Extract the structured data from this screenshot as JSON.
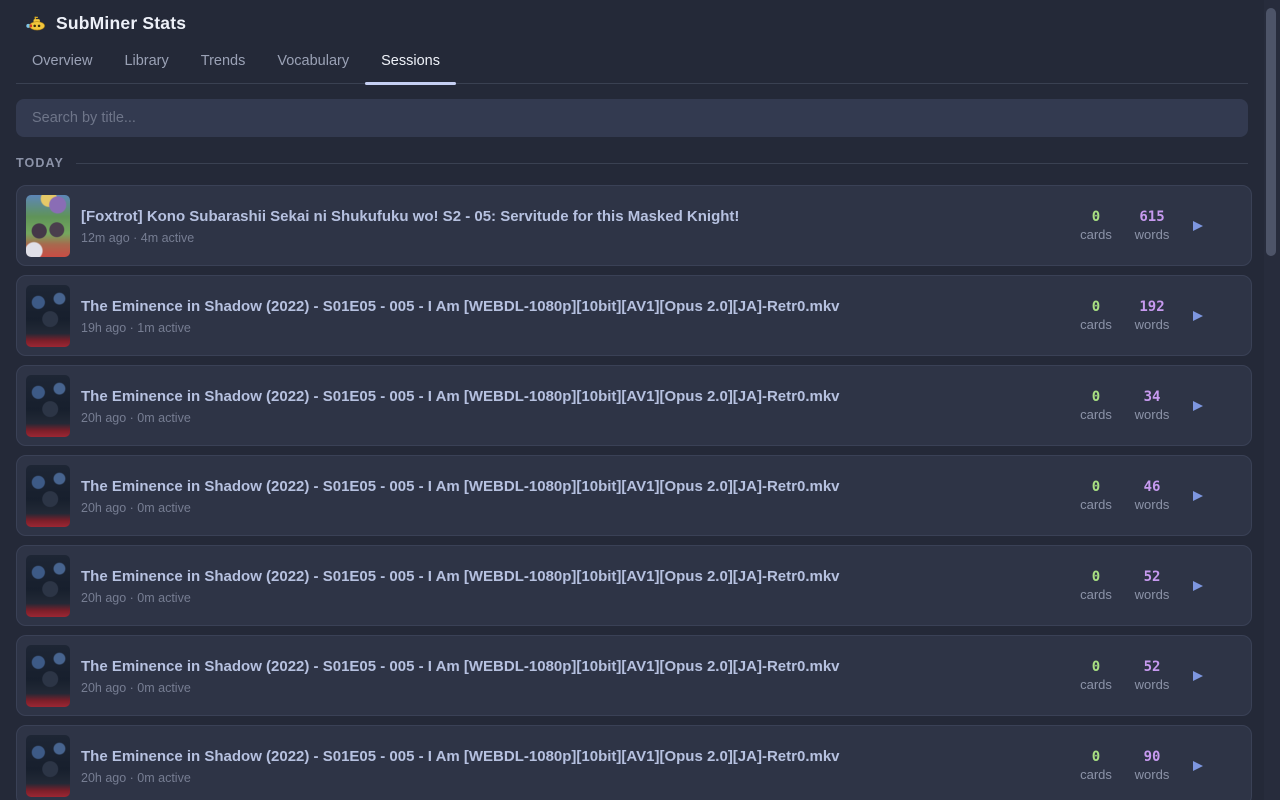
{
  "app": {
    "title": "SubMiner Stats",
    "logo_icon": "yellow-submarine"
  },
  "tabs": [
    {
      "label": "Overview",
      "active": false
    },
    {
      "label": "Library",
      "active": false
    },
    {
      "label": "Trends",
      "active": false
    },
    {
      "label": "Vocabulary",
      "active": false
    },
    {
      "label": "Sessions",
      "active": true
    }
  ],
  "search": {
    "placeholder": "Search by title..."
  },
  "section": {
    "heading": "TODAY"
  },
  "stats_labels": {
    "cards": "cards",
    "words": "words"
  },
  "sessions": [
    {
      "title": "[Foxtrot] Kono Subarashii Sekai ni Shukufuku wo! S2 - 05: Servitude for this Masked Knight!",
      "meta": "12m ago · 4m active",
      "cards": "0",
      "words": "615",
      "poster": "konosuba"
    },
    {
      "title": "The Eminence in Shadow (2022) - S01E05 - 005 - I Am [WEBDL-1080p][10bit][AV1][Opus 2.0][JA]-Retr0.mkv",
      "meta": "19h ago · 1m active",
      "cards": "0",
      "words": "192",
      "poster": "eminence"
    },
    {
      "title": "The Eminence in Shadow (2022) - S01E05 - 005 - I Am [WEBDL-1080p][10bit][AV1][Opus 2.0][JA]-Retr0.mkv",
      "meta": "20h ago · 0m active",
      "cards": "0",
      "words": "34",
      "poster": "eminence"
    },
    {
      "title": "The Eminence in Shadow (2022) - S01E05 - 005 - I Am [WEBDL-1080p][10bit][AV1][Opus 2.0][JA]-Retr0.mkv",
      "meta": "20h ago · 0m active",
      "cards": "0",
      "words": "46",
      "poster": "eminence"
    },
    {
      "title": "The Eminence in Shadow (2022) - S01E05 - 005 - I Am [WEBDL-1080p][10bit][AV1][Opus 2.0][JA]-Retr0.mkv",
      "meta": "20h ago · 0m active",
      "cards": "0",
      "words": "52",
      "poster": "eminence"
    },
    {
      "title": "The Eminence in Shadow (2022) - S01E05 - 005 - I Am [WEBDL-1080p][10bit][AV1][Opus 2.0][JA]-Retr0.mkv",
      "meta": "20h ago · 0m active",
      "cards": "0",
      "words": "52",
      "poster": "eminence"
    },
    {
      "title": "The Eminence in Shadow (2022) - S01E05 - 005 - I Am [WEBDL-1080p][10bit][AV1][Opus 2.0][JA]-Retr0.mkv",
      "meta": "20h ago · 0m active",
      "cards": "0",
      "words": "90",
      "poster": "eminence"
    }
  ],
  "colors": {
    "background": "#242938",
    "card_background": "#2e3446",
    "tab_underline": "#c5cff2",
    "cards_count": "#a8e082",
    "words_count": "#c79af0",
    "play_icon": "#7d96e0"
  }
}
